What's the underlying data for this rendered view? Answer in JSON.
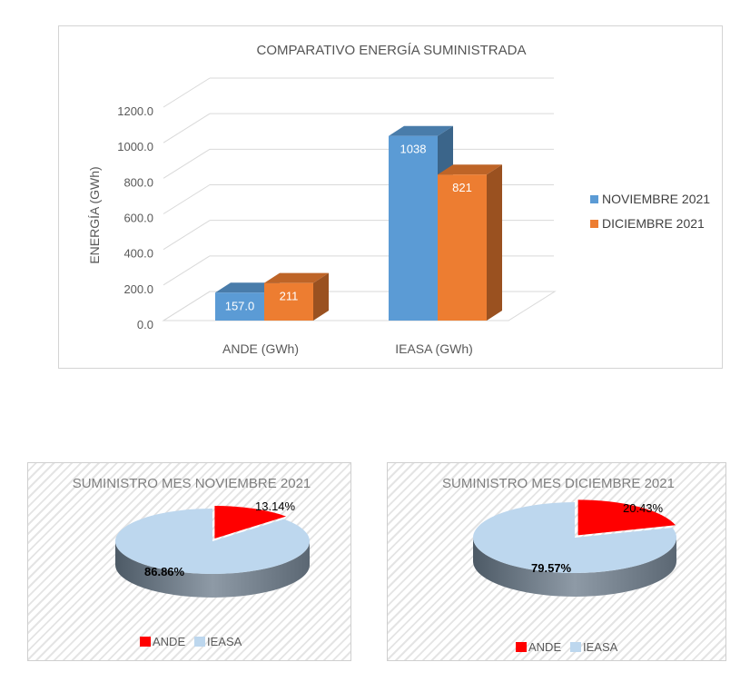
{
  "chart_data": [
    {
      "type": "bar",
      "title": "COMPARATIVO ENERGÍA SUMINISTRADA",
      "ylabel": "ENERGÍA (GWh)",
      "xlabel": "",
      "categories": [
        "ANDE (GWh)",
        "IEASA (GWh)"
      ],
      "series": [
        {
          "name": "NOVIEMBRE 2021",
          "values": [
            157.0,
            1038
          ],
          "labels": [
            "157.0",
            "1038"
          ],
          "color": "#5b9bd5"
        },
        {
          "name": "DICIEMBRE 2021",
          "values": [
            211,
            821
          ],
          "labels": [
            "211",
            "821"
          ],
          "color": "#ed7d31"
        }
      ],
      "ylim": [
        0,
        1200
      ],
      "yticks": [
        "0.0",
        "200.0",
        "400.0",
        "600.0",
        "800.0",
        "1000.0",
        "1200.0"
      ],
      "grid": true,
      "legend": "right",
      "style": "3d"
    },
    {
      "type": "pie",
      "title": "SUMINISTRO MES NOVIEMBRE 2021",
      "labels": [
        "ANDE",
        "IEASA"
      ],
      "values": [
        13.14,
        86.86
      ],
      "value_labels": [
        "13.14%",
        "86.86%"
      ],
      "colors": [
        "#ff0000",
        "#bdd7ee"
      ],
      "legend": "bottom",
      "style": "3d"
    },
    {
      "type": "pie",
      "title": "SUMINISTRO MES DICIEMBRE 2021",
      "labels": [
        "ANDE",
        "IEASA"
      ],
      "values": [
        20.43,
        79.57
      ],
      "value_labels": [
        "20.43%",
        "79.57%"
      ],
      "colors": [
        "#ff0000",
        "#bdd7ee"
      ],
      "legend": "bottom",
      "style": "3d"
    }
  ]
}
